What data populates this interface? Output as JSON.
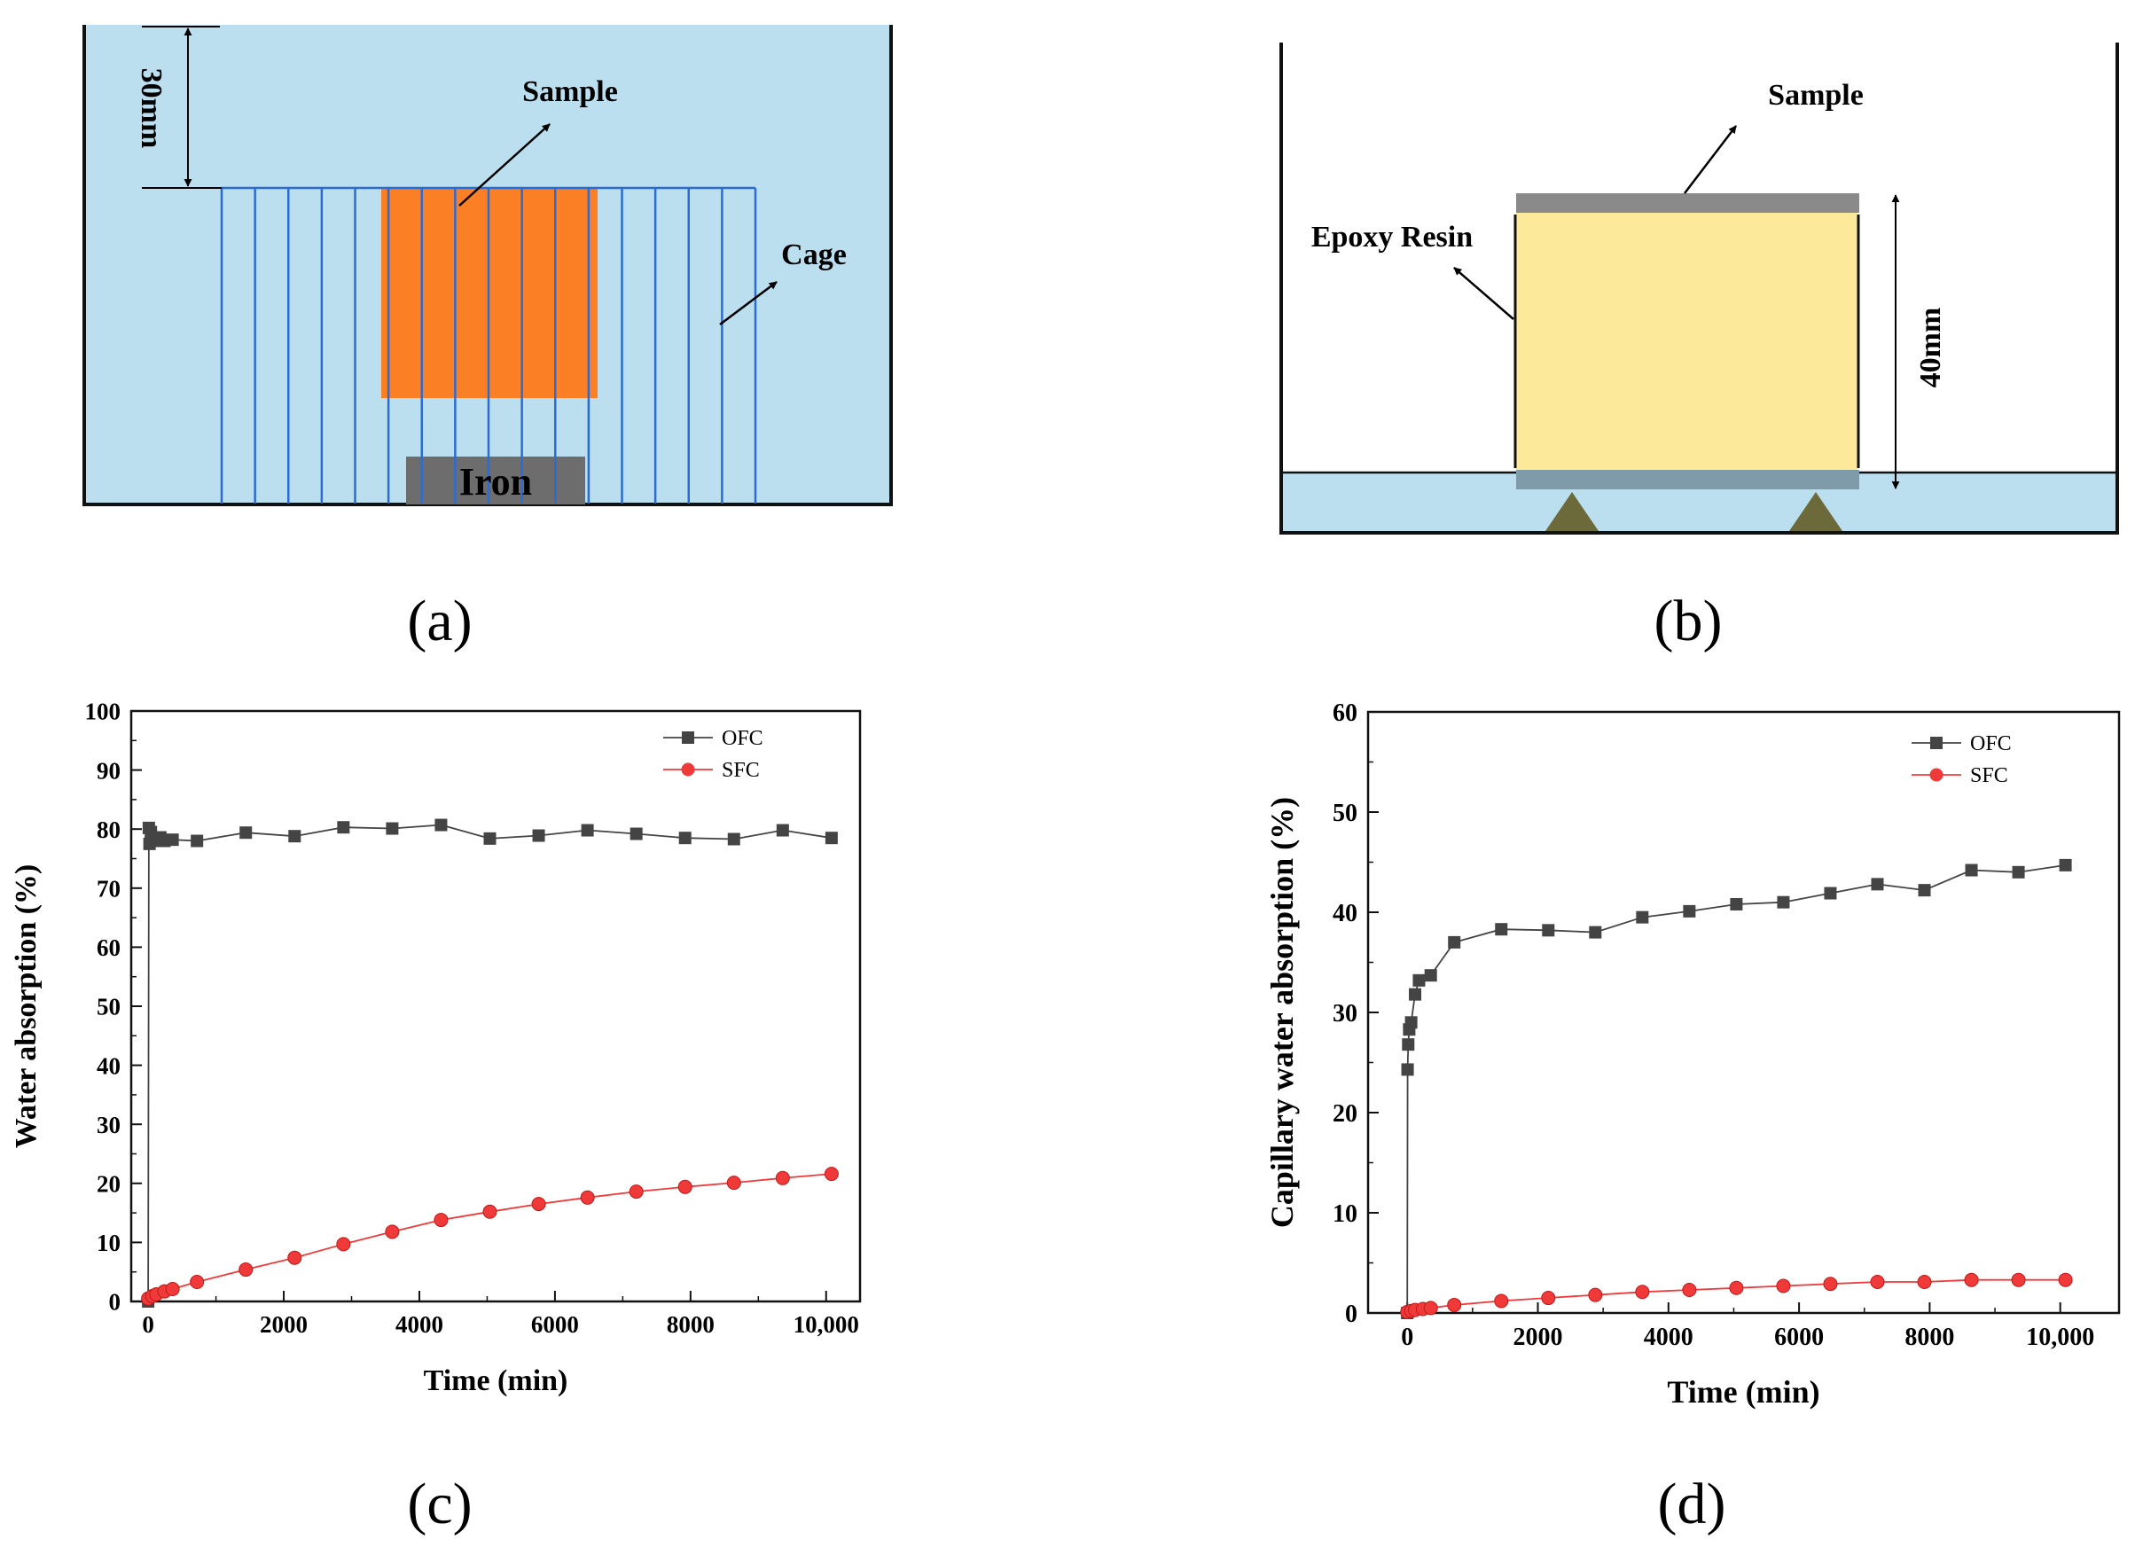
{
  "panels": {
    "a": {
      "caption": "(a)",
      "dimension_label": "30mm",
      "sample_label": "Sample",
      "cage_label": "Cage",
      "iron_label": "Iron",
      "colors": {
        "water": "#bcdff0",
        "sample": "#fb7f25",
        "cage": "#2b6cd4",
        "iron": "#6d6d6d"
      }
    },
    "b": {
      "caption": "(b)",
      "sample_label": "Sample",
      "resin_label": "Epoxy Resin",
      "dimension_label": "40mm",
      "colors": {
        "water": "#bcdff0",
        "sample": "#fde99a",
        "cap": "#8a8a8a",
        "support": "#6c6a3a"
      }
    },
    "c": {
      "caption": "(c)"
    },
    "d": {
      "caption": "(d)"
    }
  },
  "chart_data": [
    {
      "type": "line",
      "panel": "c",
      "title": "",
      "xlabel": "Time (min)",
      "ylabel": "Water absorption (%)",
      "xlim": [
        -250,
        10500
      ],
      "ylim": [
        0,
        100
      ],
      "xticks": [
        0,
        2000,
        4000,
        6000,
        8000,
        10000
      ],
      "xtick_labels": [
        "0",
        "2000",
        "4000",
        "6000",
        "8000",
        "10,000"
      ],
      "yticks": [
        0,
        10,
        20,
        30,
        40,
        50,
        60,
        70,
        80,
        90,
        100
      ],
      "ytick_labels": [
        "0",
        "10",
        "20",
        "30",
        "40",
        "50",
        "60",
        "70",
        "80",
        "90",
        "100"
      ],
      "legend_position": "top-right",
      "series": [
        {
          "name": "OFC",
          "color": "#444444",
          "marker": "square",
          "x": [
            0,
            10,
            20,
            40,
            60,
            120,
            180,
            240,
            360,
            720,
            1440,
            2160,
            2880,
            3600,
            4320,
            5040,
            5760,
            6480,
            7200,
            7920,
            8640,
            9360,
            10080
          ],
          "y": [
            0,
            80.2,
            77.5,
            79.5,
            78.0,
            78.4,
            78.6,
            78.0,
            78.2,
            78.0,
            79.4,
            78.8,
            80.3,
            80.1,
            80.7,
            78.4,
            78.9,
            79.8,
            79.2,
            78.5,
            78.3,
            79.8,
            78.5
          ]
        },
        {
          "name": "SFC",
          "color": "#f03a3a",
          "marker": "circle",
          "x": [
            0,
            60,
            120,
            240,
            360,
            720,
            1440,
            2160,
            2880,
            3600,
            4320,
            5040,
            5760,
            6480,
            7200,
            7920,
            8640,
            9360,
            10080
          ],
          "y": [
            0.5,
            0.9,
            1.2,
            1.7,
            2.1,
            3.3,
            5.4,
            7.4,
            9.7,
            11.8,
            13.8,
            15.2,
            16.5,
            17.6,
            18.6,
            19.4,
            20.1,
            20.9,
            21.6
          ]
        }
      ]
    },
    {
      "type": "line",
      "panel": "d",
      "title": "",
      "xlabel": "Time (min)",
      "ylabel": "Capillary water absorption (%)",
      "xlim": [
        -600,
        10900
      ],
      "ylim": [
        0,
        60
      ],
      "xticks": [
        0,
        2000,
        4000,
        6000,
        8000,
        10000
      ],
      "xtick_labels": [
        "0",
        "2000",
        "4000",
        "6000",
        "8000",
        "10,000"
      ],
      "yticks": [
        0,
        10,
        20,
        30,
        40,
        50,
        60
      ],
      "ytick_labels": [
        "0",
        "10",
        "20",
        "30",
        "40",
        "50",
        "60"
      ],
      "legend_position": "top-right",
      "series": [
        {
          "name": "OFC",
          "color": "#444444",
          "marker": "square",
          "x": [
            0,
            5,
            15,
            30,
            60,
            120,
            180,
            360,
            720,
            1440,
            2160,
            2880,
            3600,
            4320,
            5040,
            5760,
            6480,
            7200,
            7920,
            8640,
            9360,
            10080
          ],
          "y": [
            0,
            24.3,
            26.8,
            28.3,
            29.0,
            31.8,
            33.2,
            33.7,
            37.0,
            38.3,
            38.2,
            38.0,
            39.5,
            40.1,
            40.8,
            41.0,
            41.9,
            42.8,
            42.2,
            44.2,
            44.0,
            44.7
          ]
        },
        {
          "name": "SFC",
          "color": "#f03a3a",
          "marker": "circle",
          "x": [
            0,
            60,
            120,
            240,
            360,
            720,
            1440,
            2160,
            2880,
            3600,
            4320,
            5040,
            5760,
            6480,
            7200,
            7920,
            8640,
            9360,
            10080
          ],
          "y": [
            0.1,
            0.2,
            0.3,
            0.4,
            0.5,
            0.8,
            1.2,
            1.5,
            1.8,
            2.1,
            2.3,
            2.5,
            2.7,
            2.9,
            3.1,
            3.1,
            3.3,
            3.3,
            3.3
          ]
        }
      ]
    }
  ]
}
